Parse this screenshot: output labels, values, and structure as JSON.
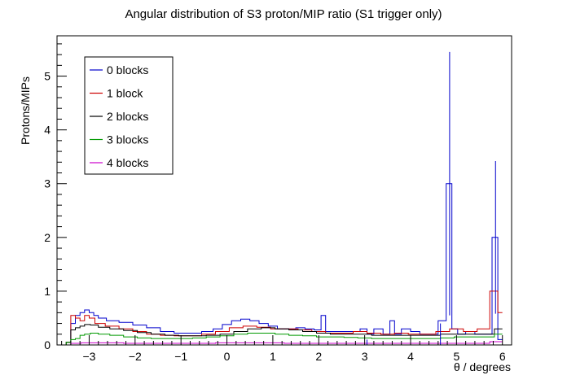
{
  "chart_data": {
    "type": "histogram-step",
    "title": "Angular distribution of S3 proton/MIP ratio (S1 trigger only)",
    "xlabel": "θ / degrees",
    "ylabel": "Protons/MIPs",
    "xlim": [
      -3.7,
      6.2
    ],
    "ylim": [
      0,
      5.75
    ],
    "x_ticks": [
      -3,
      -2,
      -1,
      0,
      1,
      2,
      3,
      4,
      5,
      6
    ],
    "y_ticks": [
      0,
      1,
      2,
      3,
      4,
      5
    ],
    "x_tick_labels": [
      "−3",
      "−2",
      "−1",
      "0",
      "1",
      "2",
      "3",
      "4",
      "5",
      "6"
    ],
    "y_tick_labels": [
      "0",
      "1",
      "2",
      "3",
      "4",
      "5"
    ],
    "legend_position": "top-left",
    "bin_width": 0.1,
    "series": [
      {
        "name": "0 blocks",
        "color": "#0000cc",
        "points": [
          [
            -3.45,
            0.05
          ],
          [
            -3.35,
            0.4
          ],
          [
            -3.25,
            0.55
          ],
          [
            -3.15,
            0.6
          ],
          [
            -3.05,
            0.65
          ],
          [
            -2.95,
            0.6
          ],
          [
            -2.85,
            0.55
          ],
          [
            -2.75,
            0.5
          ],
          [
            -2.5,
            0.45
          ],
          [
            -2.2,
            0.42
          ],
          [
            -1.9,
            0.37
          ],
          [
            -1.6,
            0.32
          ],
          [
            -1.3,
            0.25
          ],
          [
            -1.0,
            0.22
          ],
          [
            -0.7,
            0.22
          ],
          [
            -0.4,
            0.25
          ],
          [
            -0.2,
            0.3
          ],
          [
            0.0,
            0.38
          ],
          [
            0.2,
            0.45
          ],
          [
            0.4,
            0.48
          ],
          [
            0.6,
            0.45
          ],
          [
            0.8,
            0.4
          ],
          [
            1.0,
            0.35
          ],
          [
            1.2,
            0.3
          ],
          [
            1.4,
            0.3
          ],
          [
            1.6,
            0.32
          ],
          [
            1.8,
            0.3
          ],
          [
            2.0,
            0.28
          ],
          [
            2.1,
            0.55
          ],
          [
            2.2,
            0.25
          ],
          [
            2.5,
            0.25
          ],
          [
            2.8,
            0.25
          ],
          [
            3.0,
            0.3
          ],
          [
            3.1,
            0.2
          ],
          [
            3.3,
            0.3
          ],
          [
            3.5,
            0.2
          ],
          [
            3.6,
            0.45
          ],
          [
            3.7,
            0.2
          ],
          [
            3.9,
            0.3
          ],
          [
            4.1,
            0.25
          ],
          [
            4.3,
            0.2
          ],
          [
            4.5,
            0.2
          ],
          [
            4.7,
            0.45
          ],
          [
            4.85,
            3.0
          ],
          [
            4.95,
            0.3
          ],
          [
            5.1,
            0.2
          ],
          [
            5.3,
            0.25
          ],
          [
            5.5,
            0.2
          ],
          [
            5.7,
            0.2
          ],
          [
            5.85,
            2.0
          ],
          [
            5.95,
            0.1
          ]
        ],
        "errors": [
          [
            3.05,
            0.1
          ],
          [
            4.65,
            0.4
          ],
          [
            4.85,
            2.45
          ],
          [
            5.85,
            1.42
          ]
        ]
      },
      {
        "name": "1 block",
        "color": "#cc0000",
        "points": [
          [
            -3.45,
            0.05
          ],
          [
            -3.35,
            0.55
          ],
          [
            -3.25,
            0.5
          ],
          [
            -3.15,
            0.45
          ],
          [
            -3.05,
            0.55
          ],
          [
            -2.95,
            0.5
          ],
          [
            -2.8,
            0.4
          ],
          [
            -2.5,
            0.35
          ],
          [
            -2.2,
            0.3
          ],
          [
            -1.9,
            0.25
          ],
          [
            -1.6,
            0.2
          ],
          [
            -1.3,
            0.18
          ],
          [
            -1.0,
            0.17
          ],
          [
            -0.7,
            0.17
          ],
          [
            -0.4,
            0.2
          ],
          [
            -0.1,
            0.25
          ],
          [
            0.2,
            0.32
          ],
          [
            0.5,
            0.35
          ],
          [
            0.8,
            0.33
          ],
          [
            1.1,
            0.3
          ],
          [
            1.4,
            0.3
          ],
          [
            1.7,
            0.28
          ],
          [
            2.0,
            0.25
          ],
          [
            2.3,
            0.22
          ],
          [
            2.6,
            0.22
          ],
          [
            2.9,
            0.25
          ],
          [
            3.2,
            0.22
          ],
          [
            3.5,
            0.2
          ],
          [
            3.8,
            0.22
          ],
          [
            4.1,
            0.2
          ],
          [
            4.4,
            0.2
          ],
          [
            4.7,
            0.25
          ],
          [
            5.0,
            0.3
          ],
          [
            5.3,
            0.25
          ],
          [
            5.6,
            0.3
          ],
          [
            5.85,
            1.0
          ],
          [
            5.95,
            0.6
          ]
        ]
      },
      {
        "name": "2 blocks",
        "color": "#000000",
        "points": [
          [
            -3.45,
            0.05
          ],
          [
            -3.35,
            0.28
          ],
          [
            -3.25,
            0.32
          ],
          [
            -3.15,
            0.35
          ],
          [
            -3.05,
            0.38
          ],
          [
            -2.9,
            0.37
          ],
          [
            -2.7,
            0.33
          ],
          [
            -2.4,
            0.3
          ],
          [
            -2.1,
            0.27
          ],
          [
            -1.8,
            0.23
          ],
          [
            -1.5,
            0.2
          ],
          [
            -1.2,
            0.18
          ],
          [
            -0.9,
            0.17
          ],
          [
            -0.6,
            0.17
          ],
          [
            -0.3,
            0.18
          ],
          [
            0.0,
            0.2
          ],
          [
            0.3,
            0.25
          ],
          [
            0.6,
            0.3
          ],
          [
            0.9,
            0.32
          ],
          [
            1.2,
            0.3
          ],
          [
            1.5,
            0.28
          ],
          [
            1.8,
            0.25
          ],
          [
            2.1,
            0.22
          ],
          [
            2.4,
            0.2
          ],
          [
            2.7,
            0.2
          ],
          [
            3.0,
            0.2
          ],
          [
            3.3,
            0.18
          ],
          [
            3.6,
            0.18
          ],
          [
            3.9,
            0.18
          ],
          [
            4.2,
            0.18
          ],
          [
            4.5,
            0.18
          ],
          [
            4.8,
            0.2
          ],
          [
            5.1,
            0.2
          ],
          [
            5.4,
            0.2
          ],
          [
            5.7,
            0.2
          ],
          [
            5.95,
            0.3
          ]
        ]
      },
      {
        "name": "3 blocks",
        "color": "#009900",
        "points": [
          [
            -3.45,
            0.05
          ],
          [
            -3.35,
            0.1
          ],
          [
            -3.25,
            0.12
          ],
          [
            -3.15,
            0.18
          ],
          [
            -3.05,
            0.2
          ],
          [
            -2.9,
            0.22
          ],
          [
            -2.7,
            0.2
          ],
          [
            -2.4,
            0.18
          ],
          [
            -2.1,
            0.15
          ],
          [
            -1.8,
            0.13
          ],
          [
            -1.5,
            0.12
          ],
          [
            -1.2,
            0.12
          ],
          [
            -0.9,
            0.12
          ],
          [
            -0.6,
            0.13
          ],
          [
            -0.3,
            0.15
          ],
          [
            0.0,
            0.17
          ],
          [
            0.3,
            0.2
          ],
          [
            0.6,
            0.22
          ],
          [
            0.9,
            0.22
          ],
          [
            1.2,
            0.2
          ],
          [
            1.5,
            0.18
          ],
          [
            1.8,
            0.17
          ],
          [
            2.1,
            0.15
          ],
          [
            2.4,
            0.15
          ],
          [
            2.7,
            0.14
          ],
          [
            3.0,
            0.13
          ],
          [
            3.3,
            0.12
          ],
          [
            3.6,
            0.12
          ],
          [
            3.9,
            0.12
          ],
          [
            4.2,
            0.12
          ],
          [
            4.5,
            0.12
          ],
          [
            4.8,
            0.13
          ],
          [
            5.1,
            0.15
          ],
          [
            5.4,
            0.15
          ],
          [
            5.7,
            0.15
          ],
          [
            5.95,
            0.2
          ]
        ]
      },
      {
        "name": "4 blocks",
        "color": "#cc00cc",
        "points": [
          [
            -3.45,
            0.0
          ],
          [
            -3.35,
            0.03
          ],
          [
            -3.0,
            0.04
          ],
          [
            -2.5,
            0.04
          ],
          [
            -2.0,
            0.03
          ],
          [
            -1.5,
            0.03
          ],
          [
            -1.0,
            0.03
          ],
          [
            -0.5,
            0.03
          ],
          [
            0.0,
            0.04
          ],
          [
            0.5,
            0.04
          ],
          [
            1.0,
            0.04
          ],
          [
            1.5,
            0.03
          ],
          [
            2.0,
            0.03
          ],
          [
            2.5,
            0.03
          ],
          [
            3.0,
            0.03
          ],
          [
            3.5,
            0.03
          ],
          [
            4.0,
            0.03
          ],
          [
            4.5,
            0.03
          ],
          [
            5.0,
            0.03
          ],
          [
            5.5,
            0.03
          ],
          [
            5.95,
            0.06
          ]
        ]
      }
    ]
  }
}
